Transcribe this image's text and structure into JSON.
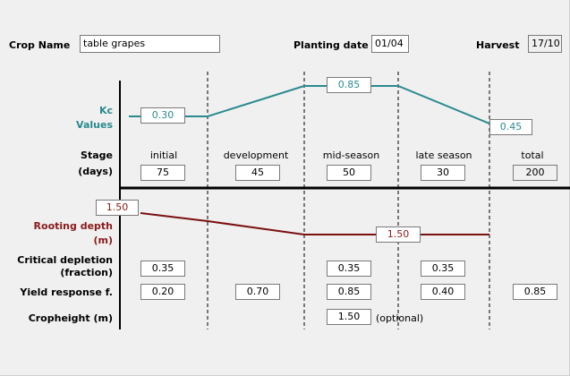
{
  "header": {
    "crop_name_label": "Crop Name",
    "crop_name_value": "table grapes",
    "planting_date_label": "Planting date",
    "planting_date_value": "01/04",
    "harvest_label": "Harvest",
    "harvest_value": "17/10"
  },
  "kc": {
    "label_line1": "Kc",
    "label_line2": "Values",
    "initial": "0.30",
    "mid": "0.85",
    "end": "0.45",
    "line_color": "#2a8a8f"
  },
  "stage": {
    "label_line1": "Stage",
    "label_line2": "(days)",
    "names": [
      "initial",
      "development",
      "mid-season",
      "late season",
      "total"
    ],
    "days": [
      "75",
      "45",
      "50",
      "30",
      "200"
    ]
  },
  "rooting": {
    "label_line1": "Rooting depth",
    "label_line2": "(m)",
    "start": "1.50",
    "end": "1.50",
    "line_color": "#7a1010"
  },
  "critical_depletion": {
    "label_line1": "Critical depletion",
    "label_line2": "(fraction)",
    "initial": "0.35",
    "mid": "0.35",
    "late": "0.35"
  },
  "yield_response": {
    "label": "Yield response f.",
    "initial": "0.20",
    "development": "0.70",
    "mid": "0.85",
    "late": "0.40",
    "total": "0.85"
  },
  "cropheight": {
    "label": "Cropheight (m)",
    "value": "1.50",
    "note": "(optional)"
  }
}
